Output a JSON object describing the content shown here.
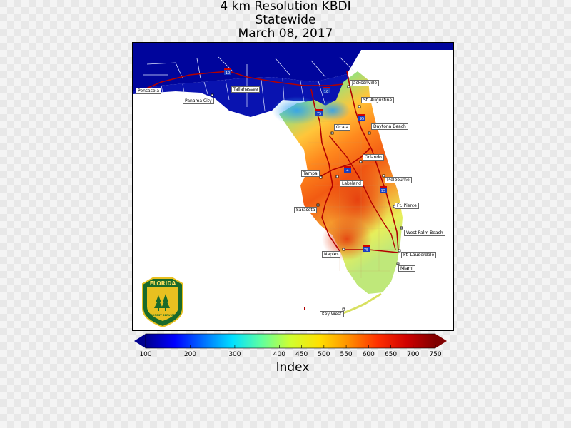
{
  "title": {
    "line1": "4 km Resolution KBDI",
    "line2": "Statewide",
    "line3": "March 08, 2017"
  },
  "logo": {
    "name": "FLORIDA",
    "subtitle": "FOREST SERVICE"
  },
  "cities": [
    {
      "key": "pensacola",
      "name": "Pensacola"
    },
    {
      "key": "panama-city",
      "name": "Panama City"
    },
    {
      "key": "tallahassee",
      "name": "Tallahassee"
    },
    {
      "key": "jacksonville",
      "name": "Jacksonville"
    },
    {
      "key": "st-augustine",
      "name": "St. Augustine"
    },
    {
      "key": "ocala",
      "name": "Ocala"
    },
    {
      "key": "daytona-beach",
      "name": "Daytona Beach"
    },
    {
      "key": "orlando",
      "name": "Orlando"
    },
    {
      "key": "tampa",
      "name": "Tampa"
    },
    {
      "key": "lakeland",
      "name": "Lakeland"
    },
    {
      "key": "melbourne",
      "name": "Melbourne"
    },
    {
      "key": "ft-pierce",
      "name": "Ft. Pierce"
    },
    {
      "key": "sarasota",
      "name": "Sarasota"
    },
    {
      "key": "west-palm-beach",
      "name": "West Palm Beach"
    },
    {
      "key": "naples",
      "name": "Naples"
    },
    {
      "key": "ft-lauderdale",
      "name": "Ft. Lauderdale"
    },
    {
      "key": "miami",
      "name": "Miami"
    },
    {
      "key": "key-west",
      "name": "Key West"
    }
  ],
  "interstates": [
    {
      "key": "i10",
      "number": "10"
    },
    {
      "key": "i10b",
      "number": "10"
    },
    {
      "key": "i75",
      "number": "75"
    },
    {
      "key": "i95",
      "number": "95"
    },
    {
      "key": "i4",
      "number": "4"
    },
    {
      "key": "i95b",
      "number": "95"
    },
    {
      "key": "i75b",
      "number": "75"
    }
  ],
  "colorbar": {
    "label": "Index",
    "ticks": [
      "100",
      "200",
      "300",
      "400",
      "450",
      "500",
      "550",
      "600",
      "650",
      "700",
      "750"
    ],
    "tick_values": [
      100,
      200,
      300,
      400,
      450,
      500,
      550,
      600,
      650,
      700,
      750
    ],
    "colors": [
      "#00008f",
      "#0000ff",
      "#0070ff",
      "#00e0ff",
      "#60ff9f",
      "#d0ff30",
      "#ffe000",
      "#ff9000",
      "#ff3000",
      "#d00000",
      "#800000"
    ]
  }
}
